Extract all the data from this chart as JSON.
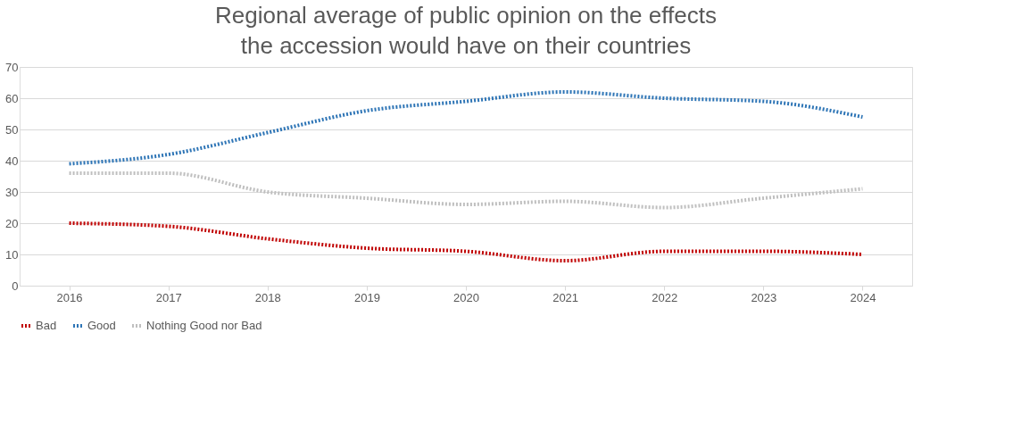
{
  "chart_data": {
    "type": "line",
    "title": "Regional average of public opinion on the effects the accession would have on their countries",
    "categories": [
      "2016",
      "2017",
      "2018",
      "2019",
      "2020",
      "2021",
      "2022",
      "2023",
      "2024"
    ],
    "series": [
      {
        "name": "Bad",
        "color": "#c00000",
        "values": [
          20,
          19,
          15,
          12,
          11,
          8,
          11,
          11,
          10
        ]
      },
      {
        "name": "Good",
        "color": "#2e75b6",
        "values": [
          39,
          42,
          49,
          56,
          59,
          62,
          60,
          59,
          54
        ]
      },
      {
        "name": "Nothing Good nor Bad",
        "color": "#bfbfbf",
        "values": [
          36,
          36,
          30,
          28,
          26,
          27,
          25,
          28,
          31
        ]
      }
    ],
    "ylim": [
      0,
      70
    ],
    "yticks": [
      0,
      10,
      20,
      30,
      40,
      50,
      60,
      70
    ],
    "grid": "y",
    "legend": "bottom",
    "line_style": "dotted",
    "marker": "none"
  }
}
